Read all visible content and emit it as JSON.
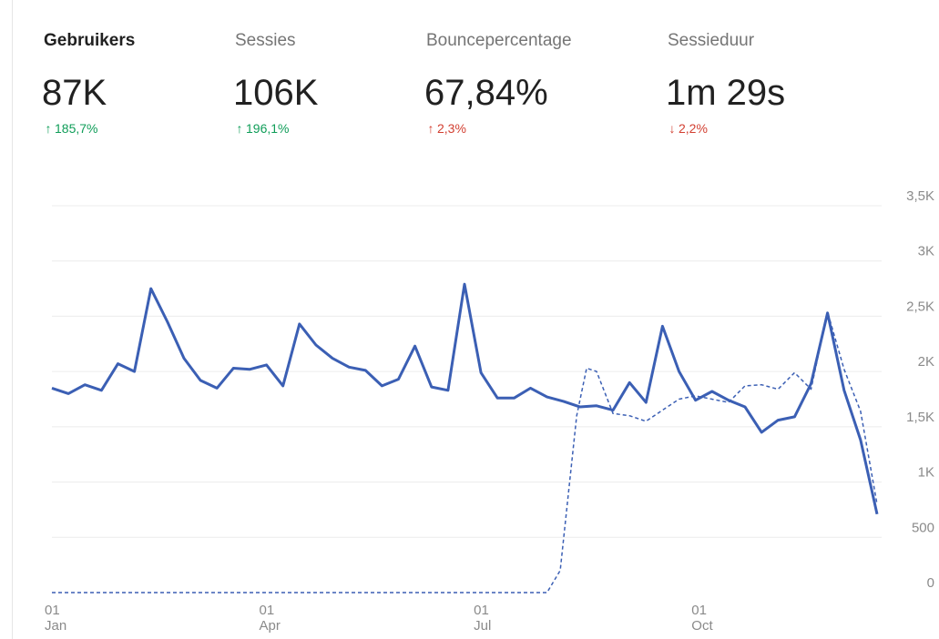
{
  "metrics": [
    {
      "label": "Gebruikers",
      "value": "87K",
      "change": "185,7%",
      "direction": "up",
      "sentiment": "good",
      "active": true
    },
    {
      "label": "Sessies",
      "value": "106K",
      "change": "196,1%",
      "direction": "up",
      "sentiment": "good",
      "active": false
    },
    {
      "label": "Bouncepercentage",
      "value": "67,84%",
      "change": "2,3%",
      "direction": "up",
      "sentiment": "bad",
      "active": false
    },
    {
      "label": "Sessieduur",
      "value": "1m 29s",
      "change": "2,2%",
      "direction": "down",
      "sentiment": "bad",
      "active": false
    }
  ],
  "colors": {
    "good": "#0f9d58",
    "bad": "#d23f31",
    "series": "#3b5fb4",
    "grid": "#ececec",
    "tick": "#8a8a8a"
  },
  "chart_data": {
    "type": "line",
    "ylim": [
      0,
      3500
    ],
    "yticks": [
      0,
      500,
      1000,
      1500,
      2000,
      2500,
      3000,
      3500
    ],
    "ytick_labels": [
      "0",
      "500",
      "1K",
      "1,5K",
      "2K",
      "2,5K",
      "3K",
      "3,5K"
    ],
    "xticks": [
      {
        "day": "01",
        "month": "Jan",
        "week": 0
      },
      {
        "day": "01",
        "month": "Apr",
        "week": 13
      },
      {
        "day": "01",
        "month": "Jul",
        "week": 26
      },
      {
        "day": "01",
        "month": "Oct",
        "week": 39.2
      }
    ],
    "series": [
      {
        "style": "solid",
        "x": [
          0,
          1,
          2,
          3,
          4,
          5,
          6,
          7,
          8,
          9,
          10,
          11,
          12,
          13,
          14,
          15,
          16,
          17,
          18,
          19,
          20,
          21,
          22,
          23,
          24,
          25,
          26,
          27,
          28,
          29,
          30,
          31,
          32,
          33,
          34,
          35,
          36,
          37,
          38,
          39,
          40,
          41,
          42,
          43,
          44,
          45,
          46,
          47,
          48,
          49,
          50
        ],
        "values": [
          1850,
          1800,
          1880,
          1830,
          2070,
          2000,
          2750,
          2450,
          2120,
          1920,
          1850,
          2030,
          2020,
          2060,
          1870,
          2430,
          2240,
          2120,
          2040,
          2010,
          1870,
          1930,
          2230,
          1860,
          1830,
          2790,
          1990,
          1760,
          1760,
          1850,
          1770,
          1730,
          1680,
          1690,
          1650,
          1900,
          1720,
          2410,
          2000,
          1740,
          1820,
          1740,
          1680,
          1450,
          1560,
          1590,
          1890,
          2530,
          1830,
          1380,
          710
        ]
      },
      {
        "style": "dashed",
        "x": [
          0,
          1,
          2,
          3,
          4,
          5,
          6,
          7,
          8,
          9,
          10,
          11,
          12,
          13,
          14,
          15,
          16,
          17,
          18,
          19,
          20,
          21,
          22,
          23,
          24,
          25,
          26,
          27,
          28,
          29,
          30,
          30.8,
          31.8,
          32.4,
          33,
          34,
          35,
          36,
          37,
          38,
          39,
          40,
          41,
          42,
          43,
          44,
          45,
          46,
          47,
          48,
          49,
          50
        ],
        "values": [
          0,
          0,
          0,
          0,
          0,
          0,
          0,
          0,
          0,
          0,
          0,
          0,
          0,
          0,
          0,
          0,
          0,
          0,
          0,
          0,
          0,
          0,
          0,
          0,
          0,
          0,
          0,
          0,
          0,
          0,
          0,
          200,
          1600,
          2030,
          2000,
          1620,
          1600,
          1550,
          1650,
          1750,
          1780,
          1750,
          1720,
          1870,
          1880,
          1840,
          1990,
          1840,
          2540,
          2020,
          1640,
          800
        ]
      }
    ]
  }
}
